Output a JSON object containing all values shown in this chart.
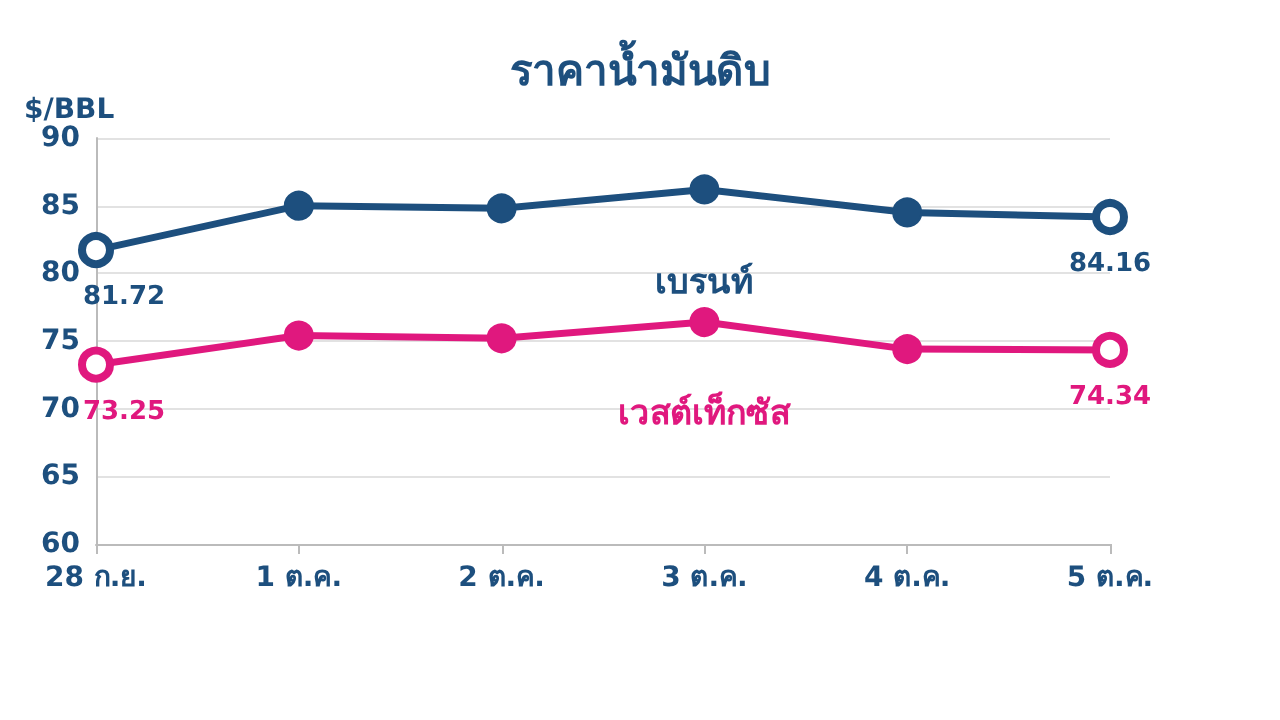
{
  "chart_data": {
    "type": "line",
    "title": "ราคาน้ำมันดิบ",
    "ylabel": "$/BBL",
    "categories": [
      "28 ก.ย.",
      "1 ต.ค.",
      "2 ต.ค.",
      "3 ต.ค.",
      "4 ต.ค.",
      "5 ต.ค."
    ],
    "series": [
      {
        "name": "เบรนท์",
        "color": "#1d4f7e",
        "values": [
          81.72,
          85.0,
          84.8,
          86.2,
          84.5,
          84.16
        ],
        "value_labels": [
          "81.72",
          null,
          null,
          null,
          null,
          "84.16"
        ]
      },
      {
        "name": "เวสต์เท็กซัส",
        "color": "#e0187e",
        "values": [
          73.25,
          75.4,
          75.2,
          76.4,
          74.4,
          74.34
        ],
        "value_labels": [
          "73.25",
          null,
          null,
          null,
          null,
          "74.34"
        ]
      }
    ],
    "ylim": [
      60,
      90
    ],
    "yticks": [
      60,
      65,
      70,
      75,
      80,
      85,
      90
    ],
    "grid": "y",
    "legend": false,
    "marker": "circle",
    "line_style": "solid"
  }
}
